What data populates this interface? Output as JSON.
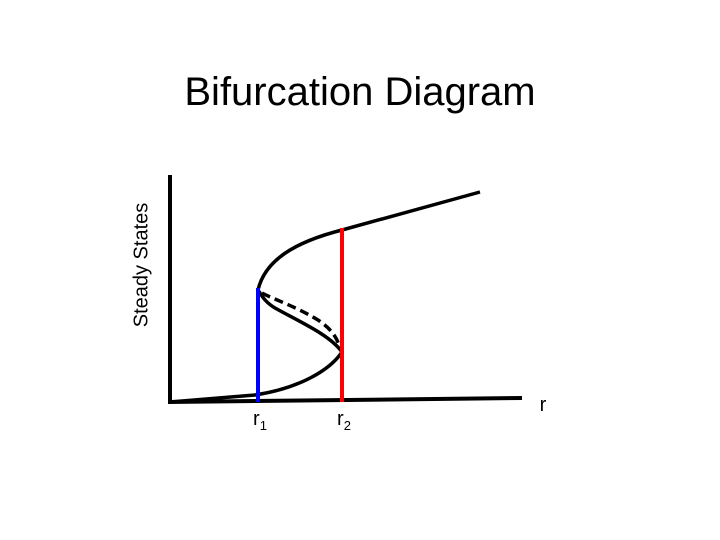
{
  "title": "Bifurcation Diagram",
  "y_axis_label": "Steady States",
  "x_axis_label": "r",
  "markers": [
    {
      "label": "r",
      "subscript": "1",
      "color": "#0000ff"
    },
    {
      "label": "r",
      "subscript": "2",
      "color": "#ff0000"
    }
  ],
  "colors": {
    "curve": "#000000",
    "r1_line": "#0000ff",
    "r2_line": "#ff0000"
  }
}
